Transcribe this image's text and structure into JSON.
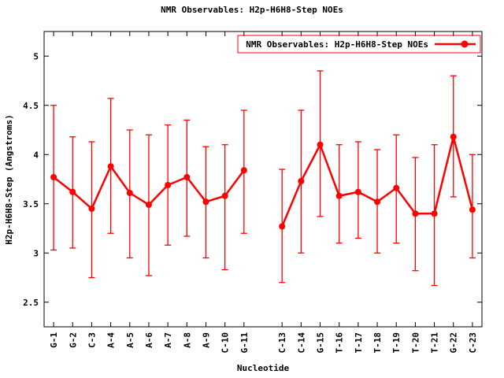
{
  "chart_data": {
    "type": "line",
    "title": "NMR Observables: H2p-H6H8-Step NOEs",
    "legend": "NMR Observables: H2p-H6H8-Step NOEs",
    "legend_position": "top-right-boxed",
    "xlabel": "Nucleotide",
    "ylabel": "H2p-H6H8-Step (Angstroms)",
    "color": "#ff0000",
    "marker": "filled-circle",
    "error_bars": true,
    "grid": false,
    "ylim": [
      2.25,
      5.25
    ],
    "xlim": [
      0.5,
      23.5
    ],
    "yticks": [
      2.5,
      3,
      3.5,
      4,
      4.5,
      5
    ],
    "ytick_labels": [
      "2.5",
      "3",
      "3.5",
      "4",
      "4.5",
      "5"
    ],
    "categories": [
      "G-1",
      "G-2",
      "C-3",
      "A-4",
      "A-5",
      "A-6",
      "A-7",
      "A-8",
      "A-9",
      "C-10",
      "G-11",
      "C-13",
      "C-14",
      "G-15",
      "T-16",
      "T-17",
      "T-18",
      "T-19",
      "T-20",
      "T-21",
      "G-22",
      "C-23"
    ],
    "positions": [
      1,
      2,
      3,
      4,
      5,
      6,
      7,
      8,
      9,
      10,
      11,
      13,
      14,
      15,
      16,
      17,
      18,
      19,
      20,
      21,
      22,
      23
    ],
    "series": [
      {
        "name": "NMR Observables: H2p-H6H8-Step NOEs",
        "values": [
          3.77,
          3.62,
          3.45,
          3.88,
          3.61,
          3.49,
          3.69,
          3.77,
          3.52,
          3.58,
          3.84,
          3.27,
          3.73,
          4.1,
          3.58,
          3.62,
          3.52,
          3.66,
          3.4,
          3.4,
          4.18,
          3.44
        ],
        "err_low": [
          3.03,
          3.05,
          2.75,
          3.2,
          2.95,
          2.77,
          3.08,
          3.17,
          2.95,
          2.83,
          3.2,
          2.7,
          3.0,
          3.37,
          3.1,
          3.15,
          3.0,
          3.1,
          2.82,
          2.67,
          3.57,
          2.95
        ],
        "err_high": [
          4.5,
          4.18,
          4.13,
          4.57,
          4.25,
          4.2,
          4.3,
          4.35,
          4.08,
          4.1,
          4.45,
          3.85,
          4.45,
          4.85,
          4.1,
          4.13,
          4.05,
          4.2,
          3.97,
          4.1,
          4.8,
          4.0
        ]
      }
    ]
  }
}
